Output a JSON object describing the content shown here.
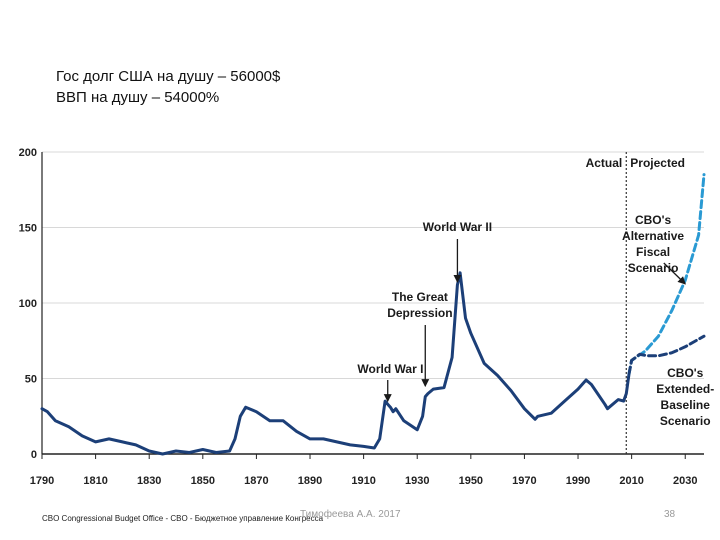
{
  "heading": {
    "line1": "Гос долг США на душу – 56000$",
    "line2": "ВВП на душу – 54000%"
  },
  "footer": {
    "source": "CBO Congressional Budget Office - CBO - Бюджетное управление Конгресса",
    "author": "Тимофеева А.А. 2017",
    "page_number": "38"
  },
  "colors": {
    "actual": "#1c3f78",
    "alternative": "#2a9ad3",
    "extended": "#1c3f78",
    "grid": "#d8d8d8",
    "axis": "#222222"
  },
  "chart_data": {
    "type": "line",
    "title": "",
    "xlabel": "",
    "ylabel": "",
    "xlim": [
      1790,
      2037
    ],
    "ylim": [
      0,
      200
    ],
    "xticks": [
      1790,
      1810,
      1830,
      1850,
      1870,
      1890,
      1910,
      1930,
      1950,
      1970,
      1990,
      2010,
      2030
    ],
    "yticks": [
      0,
      50,
      100,
      150,
      200
    ],
    "grid": true,
    "divider": {
      "x": 2008,
      "left_label": "Actual",
      "right_label": "Projected"
    },
    "series": [
      {
        "name": "Actual",
        "style": "solid",
        "x": [
          1790,
          1792,
          1795,
          1800,
          1805,
          1810,
          1815,
          1820,
          1825,
          1830,
          1835,
          1840,
          1845,
          1850,
          1855,
          1860,
          1862,
          1864,
          1866,
          1870,
          1875,
          1880,
          1885,
          1890,
          1895,
          1900,
          1905,
          1910,
          1914,
          1916,
          1918,
          1919,
          1920,
          1921,
          1922,
          1925,
          1930,
          1932,
          1933,
          1934,
          1936,
          1940,
          1943,
          1945,
          1946,
          1948,
          1950,
          1955,
          1960,
          1965,
          1970,
          1974,
          1975,
          1980,
          1985,
          1990,
          1993,
          1995,
          2000,
          2001,
          2005,
          2007,
          2008,
          2009
        ],
        "values": [
          30,
          28,
          22,
          18,
          12,
          8,
          10,
          8,
          6,
          2,
          0,
          2,
          1,
          3,
          1,
          2,
          10,
          25,
          31,
          28,
          22,
          22,
          15,
          10,
          10,
          8,
          6,
          5,
          4,
          10,
          35,
          33,
          31,
          28,
          30,
          22,
          16,
          25,
          38,
          40,
          43,
          44,
          64,
          112,
          120,
          90,
          80,
          60,
          52,
          42,
          30,
          23,
          25,
          27,
          35,
          43,
          49,
          46,
          33,
          30,
          36,
          35,
          40,
          53
        ]
      },
      {
        "name": "CBO's Alternative Fiscal Scenario",
        "style": "dashed",
        "x": [
          2009,
          2010,
          2015,
          2020,
          2025,
          2030,
          2035,
          2037
        ],
        "values": [
          53,
          62,
          68,
          78,
          95,
          115,
          145,
          185
        ]
      },
      {
        "name": "CBO's Extended-Baseline Scenario",
        "style": "dashed",
        "x": [
          2009,
          2010,
          2013,
          2016,
          2020,
          2025,
          2030,
          2035,
          2037
        ],
        "values": [
          53,
          62,
          66,
          65,
          65,
          67,
          71,
          76,
          78
        ]
      }
    ],
    "annotations": [
      {
        "lines": [
          "World War II"
        ],
        "x": 1945,
        "y": 112
      },
      {
        "lines": [
          "The Great",
          "Depression"
        ],
        "x": 1933,
        "y": 43
      },
      {
        "lines": [
          "World War I"
        ],
        "x": 1919,
        "y": 33
      },
      {
        "lines": [
          "CBO's",
          "Alternative",
          "Fiscal",
          "Scenario"
        ],
        "x": 2030,
        "y": 110
      },
      {
        "lines": [
          "CBO's",
          "Extended-",
          "Baseline",
          "Scenario"
        ],
        "x": 2028,
        "y": 68
      }
    ]
  }
}
